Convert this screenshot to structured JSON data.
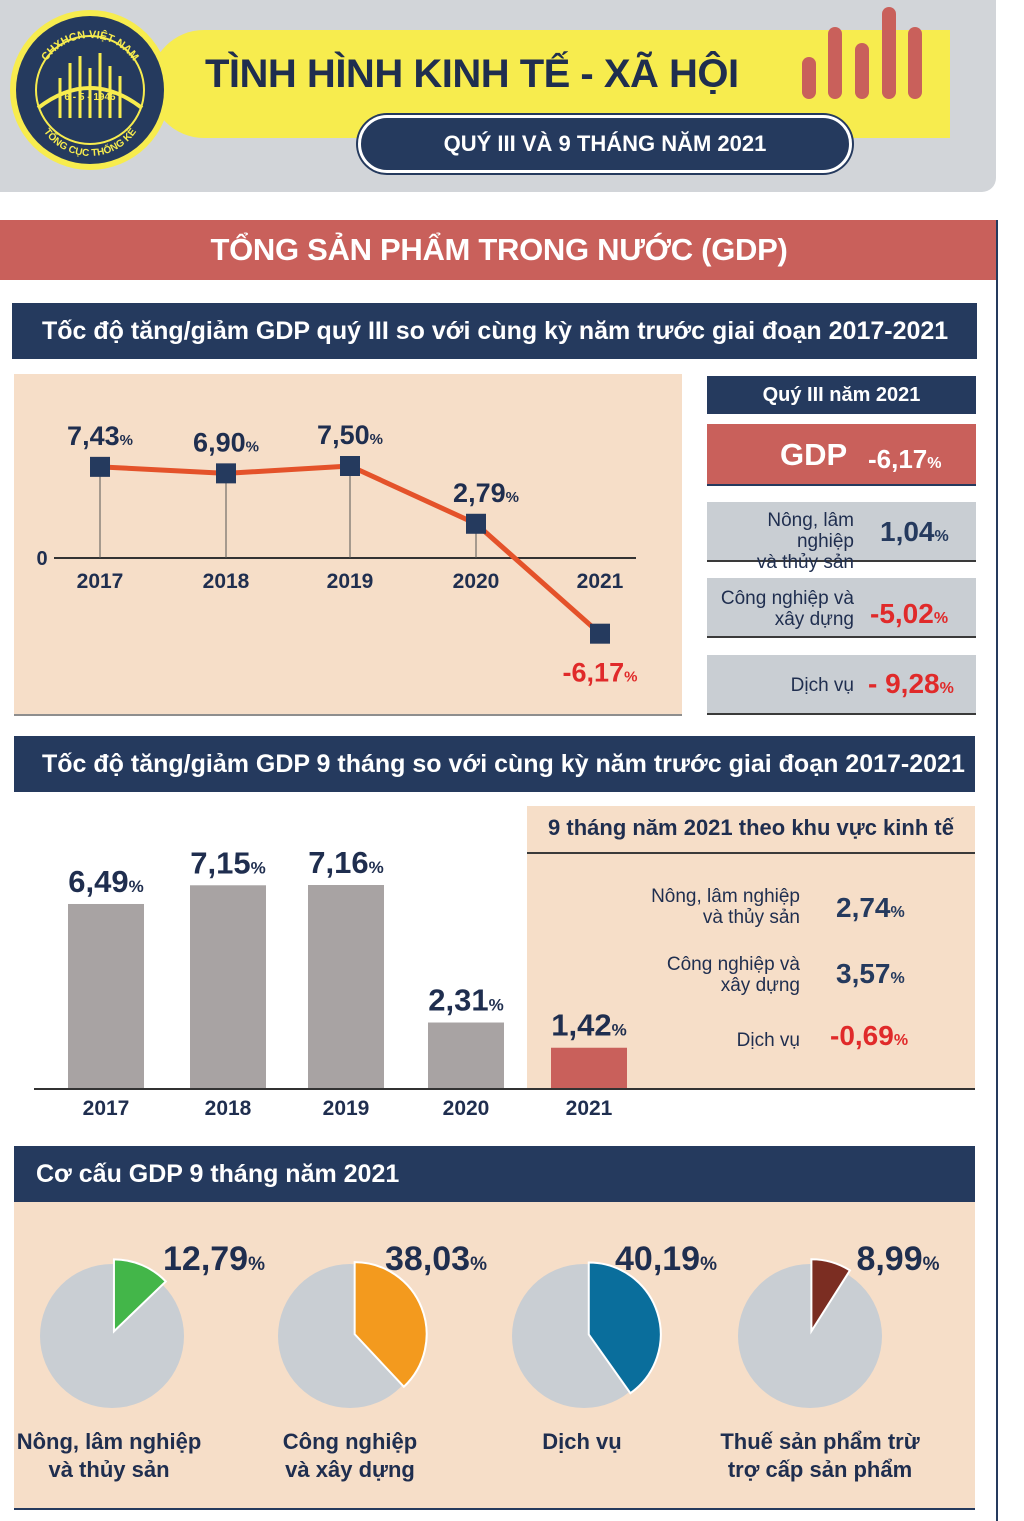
{
  "header": {
    "title": "TÌNH HÌNH KINH TẾ - XÃ HỘI",
    "subtitle": "QUÝ III VÀ 9 THÁNG NĂM 2021",
    "logo": {
      "top_text": "CHXHCN VIỆT NAM",
      "date_text": "6 - 5 - 1946",
      "bottom_text": "TỔNG CỤC THỐNG KÊ"
    },
    "icon": "bar-chart-icon"
  },
  "section": {
    "title": "TỔNG SẢN PHẨM TRONG NƯỚC (GDP)"
  },
  "quarter3": {
    "title": "Tốc độ tăng/giảm GDP quý III so với cùng kỳ năm trước giai đoạn 2017-2021",
    "summary": {
      "title": "Quý III năm 2021",
      "gdp_label": "GDP",
      "gdp_value": "-6,17",
      "sectors": [
        {
          "label_line1": "Nông, lâm nghiệp",
          "label_line2": "và thủy sản",
          "value": "1,04",
          "negative": false
        },
        {
          "label_line1": "Công nghiệp và",
          "label_line2": "xây dựng",
          "value": "-5,02",
          "negative": true
        },
        {
          "label_line1": "Dịch vụ",
          "label_line2": "",
          "value": "- 9,28",
          "negative": true
        }
      ]
    }
  },
  "months9": {
    "title": "Tốc độ tăng/giảm GDP 9 tháng so với cùng kỳ năm trước giai đoạn 2017-2021",
    "panel": {
      "title": "9 tháng năm 2021 theo khu vực kinh tế",
      "sectors": [
        {
          "label_line1": "Nông, lâm nghiệp",
          "label_line2": "và thủy sản",
          "value": "2,74",
          "negative": false
        },
        {
          "label_line1": "Công nghiệp và",
          "label_line2": "xây dựng",
          "value": "3,57",
          "negative": false
        },
        {
          "label_line1": "Dịch vụ",
          "label_line2": "",
          "value": "-0,69",
          "negative": true
        }
      ]
    }
  },
  "structure": {
    "title": "Cơ cấu GDP 9 tháng năm 2021"
  },
  "percent_sign": "%",
  "colors": {
    "navy": "#253a5e",
    "red": "#c9605b",
    "orange_line": "#e4522a",
    "peach": "#f6dec8",
    "grey": "#c9ced3",
    "bar_grey": "#a8a3a3",
    "negative": "#e02a2a"
  },
  "chart_data": [
    {
      "type": "line",
      "title": "Tốc độ tăng/giảm GDP quý III so với cùng kỳ năm trước giai đoạn 2017-2021",
      "categories": [
        "2017",
        "2018",
        "2019",
        "2020",
        "2021"
      ],
      "values": [
        7.43,
        6.9,
        7.5,
        2.79,
        -6.17
      ],
      "labels": [
        "7,43",
        "6,90",
        "7,50",
        "2,79",
        "-6,17"
      ],
      "zero_label": "0",
      "ylim": [
        -8,
        9
      ]
    },
    {
      "type": "bar",
      "title": "Tốc độ tăng/giảm GDP 9 tháng so với cùng kỳ năm trước giai đoạn 2017-2021",
      "categories": [
        "2017",
        "2018",
        "2019",
        "2020",
        "2021"
      ],
      "values": [
        6.49,
        7.15,
        7.16,
        2.31,
        1.42
      ],
      "labels": [
        "6,49",
        "7,15",
        "7,16",
        "2,31",
        "1,42"
      ],
      "highlight": "2021",
      "ylim": [
        0,
        8
      ]
    },
    {
      "type": "pie",
      "title": "Cơ cấu GDP 9 tháng năm 2021",
      "slices": [
        {
          "label_line1": "Nông, lâm nghiệp",
          "label_line2": "và thủy sản",
          "value": 12.79,
          "text": "12,79",
          "color": "#43b649"
        },
        {
          "label_line1": "Công nghiệp",
          "label_line2": "và xây dựng",
          "value": 38.03,
          "text": "38,03",
          "color": "#f39a1e"
        },
        {
          "label_line1": "Dịch vụ",
          "label_line2": "",
          "value": 40.19,
          "text": "40,19",
          "color": "#0a6e9c"
        },
        {
          "label_line1": "Thuế sản phẩm trừ",
          "label_line2": "trợ cấp sản phẩm",
          "value": 8.99,
          "text": "8,99",
          "color": "#7b2d22"
        }
      ]
    }
  ]
}
